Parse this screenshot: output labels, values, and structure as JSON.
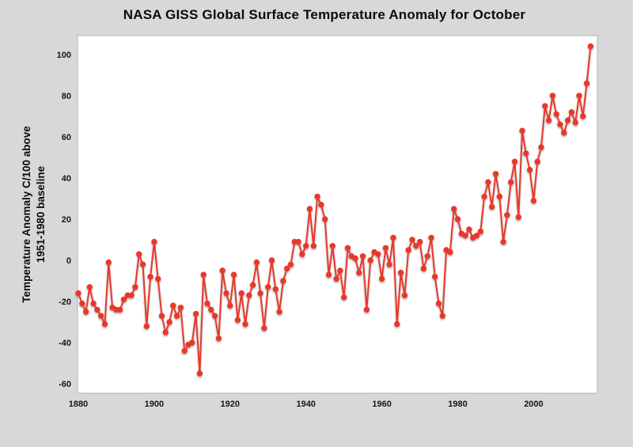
{
  "header": {
    "title": "NASA GISS Global Surface Temperature Anomaly for October"
  },
  "axes": {
    "ylabel_line1": "Temperature Anomaly C/100 above",
    "ylabel_line2": "1951-1980 baseline"
  },
  "colors": {
    "background": "#d8d8d8",
    "plot_background": "#ffffff",
    "frame": "#b3b3b3",
    "line": "#e8392b",
    "marker": "#e8392b",
    "tick_text": "#151515"
  },
  "chart_data": {
    "type": "line",
    "title": "NASA GISS Global Surface Temperature Anomaly for October",
    "xlabel": "",
    "ylabel": "Temperature Anomaly C/100 above 1951-1980 baseline",
    "legend": "none",
    "grid": false,
    "marker": "circle",
    "xlim": [
      1879.8,
      2016.8
    ],
    "ylim": [
      -64.6,
      109.2
    ],
    "x_ticks": [
      1880,
      1900,
      1920,
      1940,
      1960,
      1980,
      2000
    ],
    "y_ticks": [
      -60,
      -40,
      -20,
      0,
      20,
      40,
      60,
      80,
      100
    ],
    "x": [
      1880,
      1881,
      1882,
      1883,
      1884,
      1885,
      1886,
      1887,
      1888,
      1889,
      1890,
      1891,
      1892,
      1893,
      1894,
      1895,
      1896,
      1897,
      1898,
      1899,
      1900,
      1901,
      1902,
      1903,
      1904,
      1905,
      1906,
      1907,
      1908,
      1909,
      1910,
      1911,
      1912,
      1913,
      1914,
      1915,
      1916,
      1917,
      1918,
      1919,
      1920,
      1921,
      1922,
      1923,
      1924,
      1925,
      1926,
      1927,
      1928,
      1929,
      1930,
      1931,
      1932,
      1933,
      1934,
      1935,
      1936,
      1937,
      1938,
      1939,
      1940,
      1941,
      1942,
      1943,
      1944,
      1945,
      1946,
      1947,
      1948,
      1949,
      1950,
      1951,
      1952,
      1953,
      1954,
      1955,
      1956,
      1957,
      1958,
      1959,
      1960,
      1961,
      1962,
      1963,
      1964,
      1965,
      1966,
      1967,
      1968,
      1969,
      1970,
      1971,
      1972,
      1973,
      1974,
      1975,
      1976,
      1977,
      1978,
      1979,
      1980,
      1981,
      1982,
      1983,
      1984,
      1985,
      1986,
      1987,
      1988,
      1989,
      1990,
      1991,
      1992,
      1993,
      1994,
      1995,
      1996,
      1997,
      1998,
      1999,
      2000,
      2001,
      2002,
      2003,
      2004,
      2005,
      2006,
      2007,
      2008,
      2009,
      2010,
      2011,
      2012,
      2013,
      2014,
      2015
    ],
    "values": [
      -16,
      -21,
      -25,
      -13,
      -21,
      -24,
      -27,
      -31,
      -1,
      -23,
      -24,
      -24,
      -19,
      -17,
      -17,
      -13,
      3,
      -2,
      -32,
      -8,
      9,
      -9,
      -27,
      -35,
      -30,
      -22,
      -27,
      -23,
      -44,
      -41,
      -40,
      -26,
      -55,
      -7,
      -21,
      -24,
      -27,
      -38,
      -5,
      -16,
      -22,
      -7,
      -29,
      -16,
      -31,
      -17,
      -12,
      -1,
      -16,
      -33,
      -13,
      0,
      -14,
      -25,
      -10,
      -4,
      -2,
      9,
      9,
      3,
      7,
      25,
      7,
      31,
      27,
      20,
      -7,
      7,
      -9,
      -5,
      -18,
      6,
      2,
      1,
      -6,
      2,
      -24,
      0,
      4,
      3,
      -9,
      6,
      -2,
      11,
      -31,
      -6,
      -17,
      5,
      10,
      7,
      9,
      -4,
      2,
      11,
      -8,
      -21,
      -27,
      5,
      4,
      25,
      20,
      13,
      12,
      15,
      11,
      12,
      14,
      31,
      38,
      26,
      42,
      31,
      9,
      22,
      38,
      48,
      21,
      63,
      52,
      44,
      29,
      48,
      55,
      75,
      68,
      80,
      71,
      66,
      62,
      68,
      72,
      67,
      80,
      70,
      86,
      104
    ]
  }
}
